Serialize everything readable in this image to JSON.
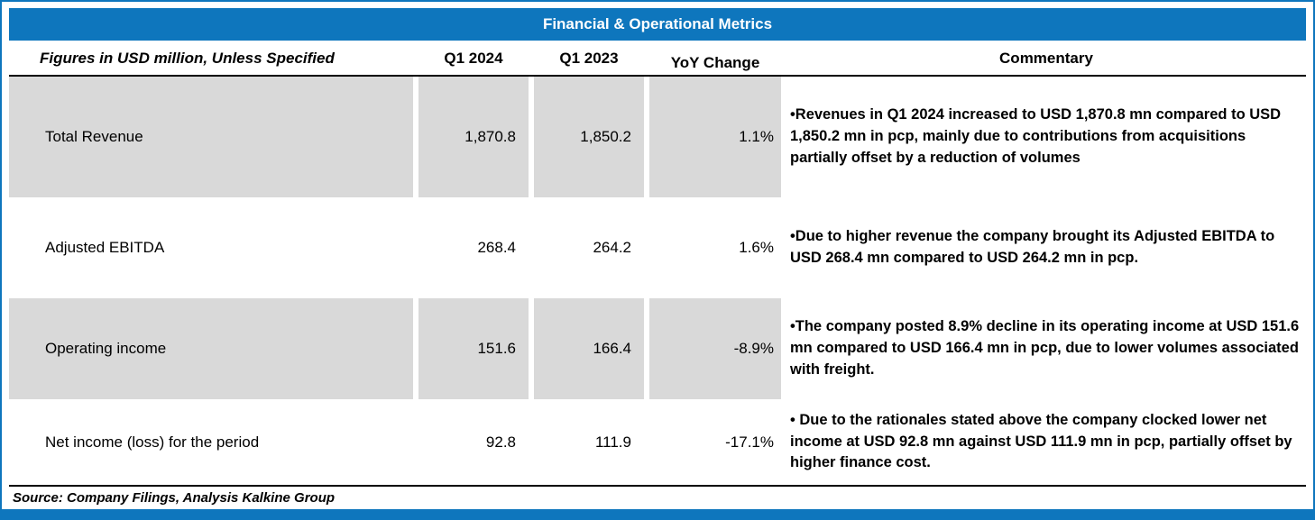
{
  "title": "Financial & Operational Metrics",
  "header": {
    "metric": "Figures in USD million, Unless Specified",
    "q1_2024": "Q1 2024",
    "q1_2023": "Q1 2023",
    "yoy": "YoY Change",
    "commentary": "Commentary"
  },
  "rows": [
    {
      "metric": "Total Revenue",
      "q1_2024": "1,870.8",
      "q1_2023": "1,850.2",
      "yoy": "1.1%",
      "commentary": "•Revenues in Q1 2024 increased to USD 1,870.8 mn compared to USD 1,850.2 mn in pcp, mainly due to contributions from acquisitions partially offset by a reduction of volumes"
    },
    {
      "metric": "Adjusted EBITDA",
      "q1_2024": "268.4",
      "q1_2023": "264.2",
      "yoy": "1.6%",
      "commentary": "•Due to higher revenue the company brought its Adjusted EBITDA to USD 268.4 mn compared to USD 264.2 mn in pcp."
    },
    {
      "metric": "Operating income",
      "q1_2024": "151.6",
      "q1_2023": "166.4",
      "yoy": "-8.9%",
      "commentary": "•The company posted 8.9% decline in its operating income at USD 151.6 mn compared to USD 166.4 mn in pcp, due to lower volumes associated with freight."
    },
    {
      "metric": "Net income (loss) for the period",
      "q1_2024": "92.8",
      "q1_2023": "111.9",
      "yoy": "-17.1%",
      "commentary": "• Due to the rationales stated above the company clocked lower net income at USD 92.8 mn against USD 111.9 mn in pcp, partially offset by higher finance cost."
    }
  ],
  "source": "Source: Company Filings, Analysis Kalkine Group",
  "colors": {
    "accent_blue": "#0E76BD",
    "row_shade": "#D9D9D9"
  }
}
